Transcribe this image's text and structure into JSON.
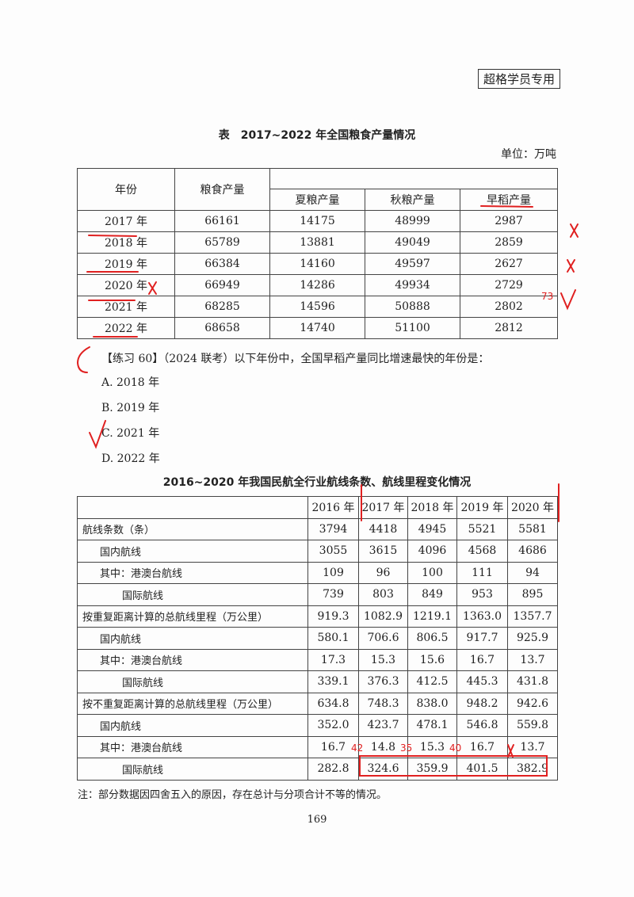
{
  "badge": "超格学员专用",
  "table1": {
    "title": "表　2017~2022 年全国粮食产量情况",
    "unit": "单位：万吨",
    "headers": {
      "year": "年份",
      "total": "粮食产量",
      "summer": "夏粮产量",
      "autumn": "秋粮产量",
      "early_rice": "早稻产量"
    },
    "rows": [
      [
        "2017 年",
        "66161",
        "14175",
        "48999",
        "2987"
      ],
      [
        "2018 年",
        "65789",
        "13881",
        "49049",
        "2859"
      ],
      [
        "2019 年",
        "66384",
        "14160",
        "49597",
        "2627"
      ],
      [
        "2020 年",
        "66949",
        "14286",
        "49934",
        "2729"
      ],
      [
        "2021 年",
        "68285",
        "14596",
        "50888",
        "2802"
      ],
      [
        "2022 年",
        "68658",
        "14740",
        "51100",
        "2812"
      ]
    ]
  },
  "question": {
    "text": "【练习 60】（2024 联考）以下年份中，全国早稻产量同比增速最快的年份是：",
    "options": [
      "A. 2018 年",
      "B. 2019 年",
      "C. 2021 年",
      "D. 2022 年"
    ]
  },
  "table2": {
    "title": "2016~2020 年我国民航全行业航线条数、航线里程变化情况",
    "years": [
      "2016 年",
      "2017 年",
      "2018 年",
      "2019 年",
      "2020 年"
    ],
    "rows": [
      {
        "label": "航线条数（条）",
        "indent": 0,
        "values": [
          "3794",
          "4418",
          "4945",
          "5521",
          "5581"
        ]
      },
      {
        "label": "国内航线",
        "indent": 1,
        "values": [
          "3055",
          "3615",
          "4096",
          "4568",
          "4686"
        ]
      },
      {
        "label": "其中：港澳台航线",
        "indent": 1,
        "values": [
          "109",
          "96",
          "100",
          "111",
          "94"
        ]
      },
      {
        "label": "国际航线",
        "indent": 2,
        "values": [
          "739",
          "803",
          "849",
          "953",
          "895"
        ]
      },
      {
        "label": "按重复距离计算的总航线里程（万公里）",
        "indent": 0,
        "values": [
          "919.3",
          "1082.9",
          "1219.1",
          "1363.0",
          "1357.7"
        ]
      },
      {
        "label": "国内航线",
        "indent": 1,
        "values": [
          "580.1",
          "706.6",
          "806.5",
          "917.7",
          "925.9"
        ]
      },
      {
        "label": "其中：港澳台航线",
        "indent": 1,
        "values": [
          "17.3",
          "15.3",
          "15.6",
          "16.7",
          "13.7"
        ]
      },
      {
        "label": "国际航线",
        "indent": 2,
        "values": [
          "339.1",
          "376.3",
          "412.5",
          "445.3",
          "431.8"
        ]
      },
      {
        "label": "按不重复距离计算的总航线里程（万公里）",
        "indent": 0,
        "values": [
          "634.8",
          "748.3",
          "838.0",
          "948.2",
          "942.6"
        ]
      },
      {
        "label": "国内航线",
        "indent": 1,
        "values": [
          "352.0",
          "423.7",
          "478.1",
          "546.8",
          "559.8"
        ]
      },
      {
        "label": "其中：港澳台航线",
        "indent": 1,
        "values": [
          "16.7",
          "14.8",
          "15.3",
          "16.7",
          "13.7"
        ]
      },
      {
        "label": "国际航线",
        "indent": 2,
        "values": [
          "282.8",
          "324.6",
          "359.9",
          "401.5",
          "382.9"
        ]
      }
    ],
    "note": "注：部分数据因四舍五入的原因，存在总计与分项合计不等的情况。"
  },
  "page_number": "169",
  "annotations": {
    "color": "#e02020",
    "answer": "C",
    "t1_note": "73",
    "t2_notes": [
      "42",
      "35",
      "40"
    ]
  }
}
